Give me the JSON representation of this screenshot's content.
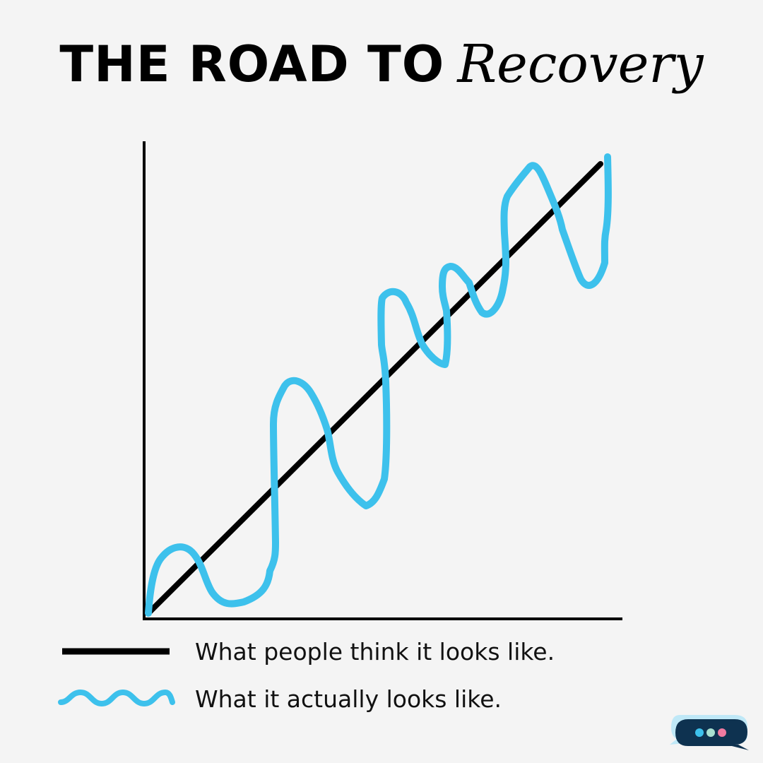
{
  "title": {
    "main": "THE ROAD TO",
    "script": "Recovery"
  },
  "legend": [
    {
      "label": "What people think it looks like.",
      "style": "straight-line",
      "color": "#000000"
    },
    {
      "label": "What it actually looks like.",
      "style": "wavy-line",
      "color": "#3dc1ec"
    }
  ],
  "colors": {
    "background": "#f4f4f4",
    "axis": "#000000",
    "expectation_line": "#000000",
    "reality_line": "#3dc1ec",
    "chat_bubble_front": "#0e3250",
    "chat_bubble_back": "#bfe8f7",
    "chat_dots": [
      "#3dc1ec",
      "#a8e0d0",
      "#f07aa0"
    ]
  },
  "icons": {
    "chat": "chat-bubble-icon"
  }
}
